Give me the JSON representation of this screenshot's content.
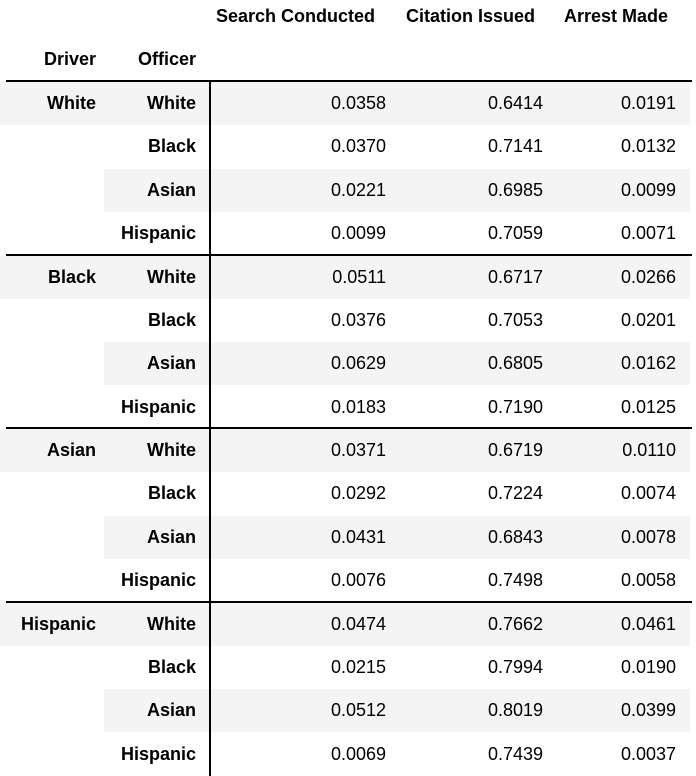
{
  "table": {
    "column_headers": [
      "Search Conducted",
      "Citation Issued",
      "Arrest Made"
    ],
    "index_headers": [
      "Driver",
      "Officer"
    ],
    "groups": [
      {
        "driver": "White",
        "rows": [
          {
            "officer": "White",
            "values": [
              "0.0358",
              "0.6414",
              "0.0191"
            ]
          },
          {
            "officer": "Black",
            "values": [
              "0.0370",
              "0.7141",
              "0.0132"
            ]
          },
          {
            "officer": "Asian",
            "values": [
              "0.0221",
              "0.6985",
              "0.0099"
            ]
          },
          {
            "officer": "Hispanic",
            "values": [
              "0.0099",
              "0.7059",
              "0.0071"
            ]
          }
        ]
      },
      {
        "driver": "Black",
        "rows": [
          {
            "officer": "White",
            "values": [
              "0.0511",
              "0.6717",
              "0.0266"
            ]
          },
          {
            "officer": "Black",
            "values": [
              "0.0376",
              "0.7053",
              "0.0201"
            ]
          },
          {
            "officer": "Asian",
            "values": [
              "0.0629",
              "0.6805",
              "0.0162"
            ]
          },
          {
            "officer": "Hispanic",
            "values": [
              "0.0183",
              "0.7190",
              "0.0125"
            ]
          }
        ]
      },
      {
        "driver": "Asian",
        "rows": [
          {
            "officer": "White",
            "values": [
              "0.0371",
              "0.6719",
              "0.0110"
            ]
          },
          {
            "officer": "Black",
            "values": [
              "0.0292",
              "0.7224",
              "0.0074"
            ]
          },
          {
            "officer": "Asian",
            "values": [
              "0.0431",
              "0.6843",
              "0.0078"
            ]
          },
          {
            "officer": "Hispanic",
            "values": [
              "0.0076",
              "0.7498",
              "0.0058"
            ]
          }
        ]
      },
      {
        "driver": "Hispanic",
        "rows": [
          {
            "officer": "White",
            "values": [
              "0.0474",
              "0.7662",
              "0.0461"
            ]
          },
          {
            "officer": "Black",
            "values": [
              "0.0215",
              "0.7994",
              "0.0190"
            ]
          },
          {
            "officer": "Asian",
            "values": [
              "0.0512",
              "0.8019",
              "0.0399"
            ]
          },
          {
            "officer": "Hispanic",
            "values": [
              "0.0069",
              "0.7439",
              "0.0037"
            ]
          }
        ]
      }
    ]
  }
}
